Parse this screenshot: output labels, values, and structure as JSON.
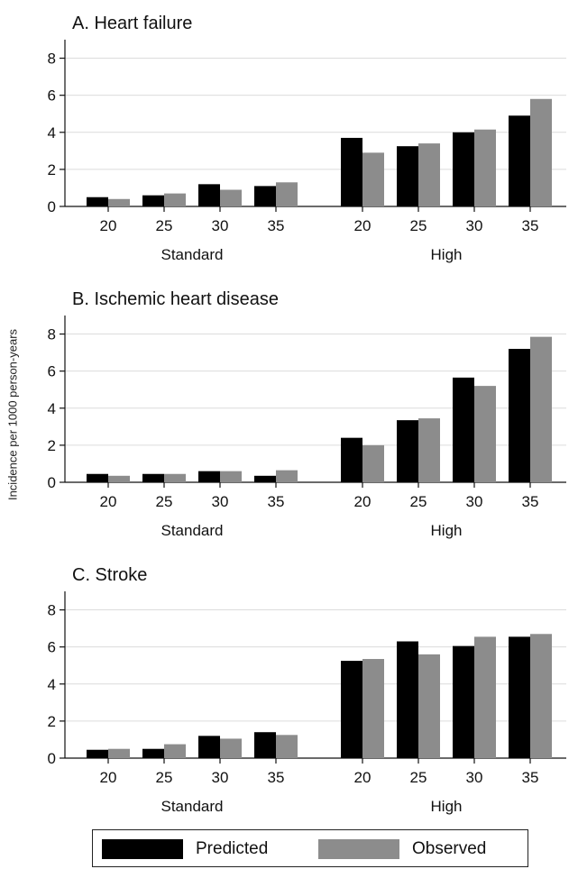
{
  "ylabel": "Incidence per 1000 person-years",
  "legend": {
    "predicted": "Predicted",
    "observed": "Observed"
  },
  "colors": {
    "predicted": "#000000",
    "observed": "#8c8c8c",
    "axis": "#111111",
    "grid": "#dcdcdc"
  },
  "chart_data": [
    {
      "type": "bar",
      "title": "A. Heart failure",
      "groups": [
        "Standard",
        "High"
      ],
      "categories": [
        "20",
        "25",
        "30",
        "35"
      ],
      "ylim": [
        0,
        9
      ],
      "yticks": [
        0,
        2,
        4,
        6,
        8
      ],
      "grid": true,
      "series": [
        {
          "name": "Predicted",
          "values": {
            "Standard": [
              0.5,
              0.6,
              1.2,
              1.1
            ],
            "High": [
              3.7,
              3.25,
              4.0,
              4.9
            ]
          }
        },
        {
          "name": "Observed",
          "values": {
            "Standard": [
              0.4,
              0.7,
              0.9,
              1.3
            ],
            "High": [
              2.9,
              3.4,
              4.15,
              5.8
            ]
          }
        }
      ]
    },
    {
      "type": "bar",
      "title": "B. Ischemic heart disease",
      "groups": [
        "Standard",
        "High"
      ],
      "categories": [
        "20",
        "25",
        "30",
        "35"
      ],
      "ylim": [
        0,
        9
      ],
      "yticks": [
        0,
        2,
        4,
        6,
        8
      ],
      "grid": true,
      "series": [
        {
          "name": "Predicted",
          "values": {
            "Standard": [
              0.45,
              0.45,
              0.6,
              0.35
            ],
            "High": [
              2.4,
              3.35,
              5.65,
              7.2
            ]
          }
        },
        {
          "name": "Observed",
          "values": {
            "Standard": [
              0.35,
              0.45,
              0.6,
              0.65
            ],
            "High": [
              2.0,
              3.45,
              5.2,
              7.85
            ]
          }
        }
      ]
    },
    {
      "type": "bar",
      "title": "C. Stroke",
      "groups": [
        "Standard",
        "High"
      ],
      "categories": [
        "20",
        "25",
        "30",
        "35"
      ],
      "ylim": [
        0,
        9
      ],
      "yticks": [
        0,
        2,
        4,
        6,
        8
      ],
      "grid": true,
      "series": [
        {
          "name": "Predicted",
          "values": {
            "Standard": [
              0.45,
              0.5,
              1.2,
              1.4
            ],
            "High": [
              5.25,
              6.3,
              6.05,
              6.55
            ]
          }
        },
        {
          "name": "Observed",
          "values": {
            "Standard": [
              0.5,
              0.75,
              1.05,
              1.25
            ],
            "High": [
              5.35,
              5.6,
              6.55,
              6.7
            ]
          }
        }
      ]
    }
  ]
}
